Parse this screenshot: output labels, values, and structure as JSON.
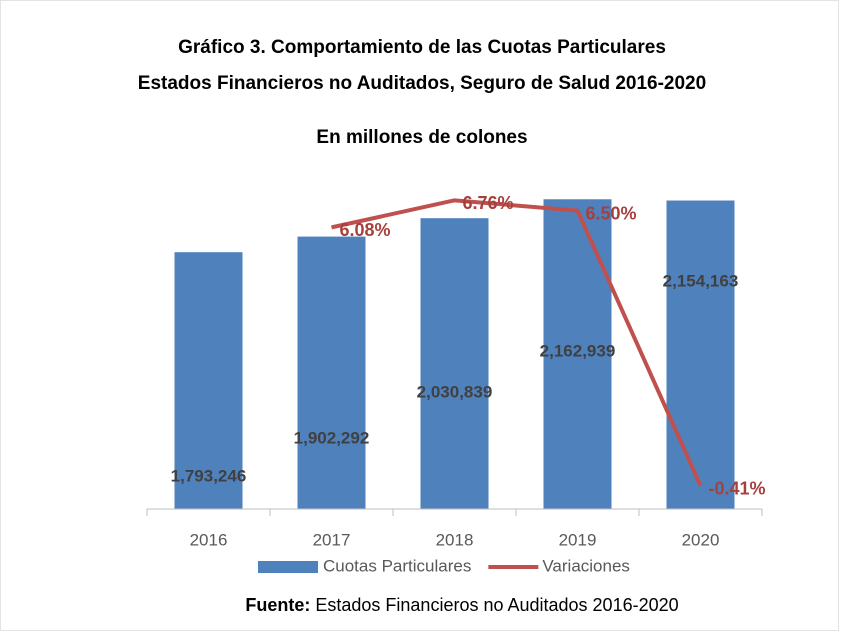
{
  "chart_data": {
    "type": "bar",
    "title": [
      "Gráfico 3. Comportamiento de las Cuotas Particulares",
      "Estados Financieros no Auditados, Seguro de Salud 2016-2020"
    ],
    "subtitle": "En millones de colones",
    "categories": [
      "2016",
      "2017",
      "2018",
      "2019",
      "2020"
    ],
    "series": [
      {
        "name": "Cuotas Particulares",
        "type": "bar",
        "color": "#4f81bd",
        "values": [
          1793246,
          1902292,
          2030839,
          2162939,
          2154163
        ],
        "value_labels": [
          "1,793,246",
          "1,902,292",
          "2,030,839",
          "2,162,939",
          "2,154,163"
        ]
      },
      {
        "name": "Variaciones",
        "type": "line",
        "axis": "y2",
        "color": "#c0504d",
        "values": [
          null,
          6.08,
          6.76,
          6.5,
          -0.41
        ],
        "value_labels": [
          null,
          "6.08%",
          "6.76%",
          "6.50%",
          "-0.41%"
        ]
      }
    ],
    "ylim": [
      0,
      2500000
    ],
    "y2lim": [
      -1,
      8
    ],
    "source_label": "Fuente:",
    "source_text": "Estados Financieros no Auditados 2016-2020"
  }
}
